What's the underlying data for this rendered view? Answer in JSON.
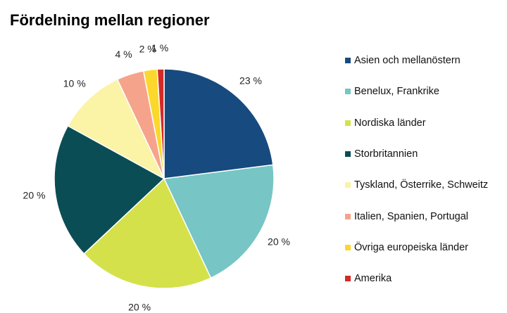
{
  "chart_data": {
    "type": "pie",
    "title": "Fördelning mellan regioner",
    "slices": [
      {
        "label": "Asien och mellanöstern",
        "value": 23,
        "display": "23 %",
        "color": "#174a7e"
      },
      {
        "label": "Benelux, Frankrike",
        "value": 20,
        "display": "20 %",
        "color": "#77c5c5"
      },
      {
        "label": "Nordiska länder",
        "value": 20,
        "display": "20 %",
        "color": "#d4e14a"
      },
      {
        "label": "Storbritannien",
        "value": 20,
        "display": "20 %",
        "color": "#0b4d55"
      },
      {
        "label": "Tyskland, Österrike, Schweitz",
        "value": 10,
        "display": "10 %",
        "color": "#fbf3a6"
      },
      {
        "label": "Italien, Spanien, Portugal",
        "value": 4,
        "display": "4 %",
        "color": "#f5a48b"
      },
      {
        "label": "Övriga europeiska länder",
        "value": 2,
        "display": "2 %",
        "color": "#fcd72c"
      },
      {
        "label": "Amerika",
        "value": 1,
        "display": "1 %",
        "color": "#d32a27"
      }
    ],
    "legend_position": "right"
  }
}
